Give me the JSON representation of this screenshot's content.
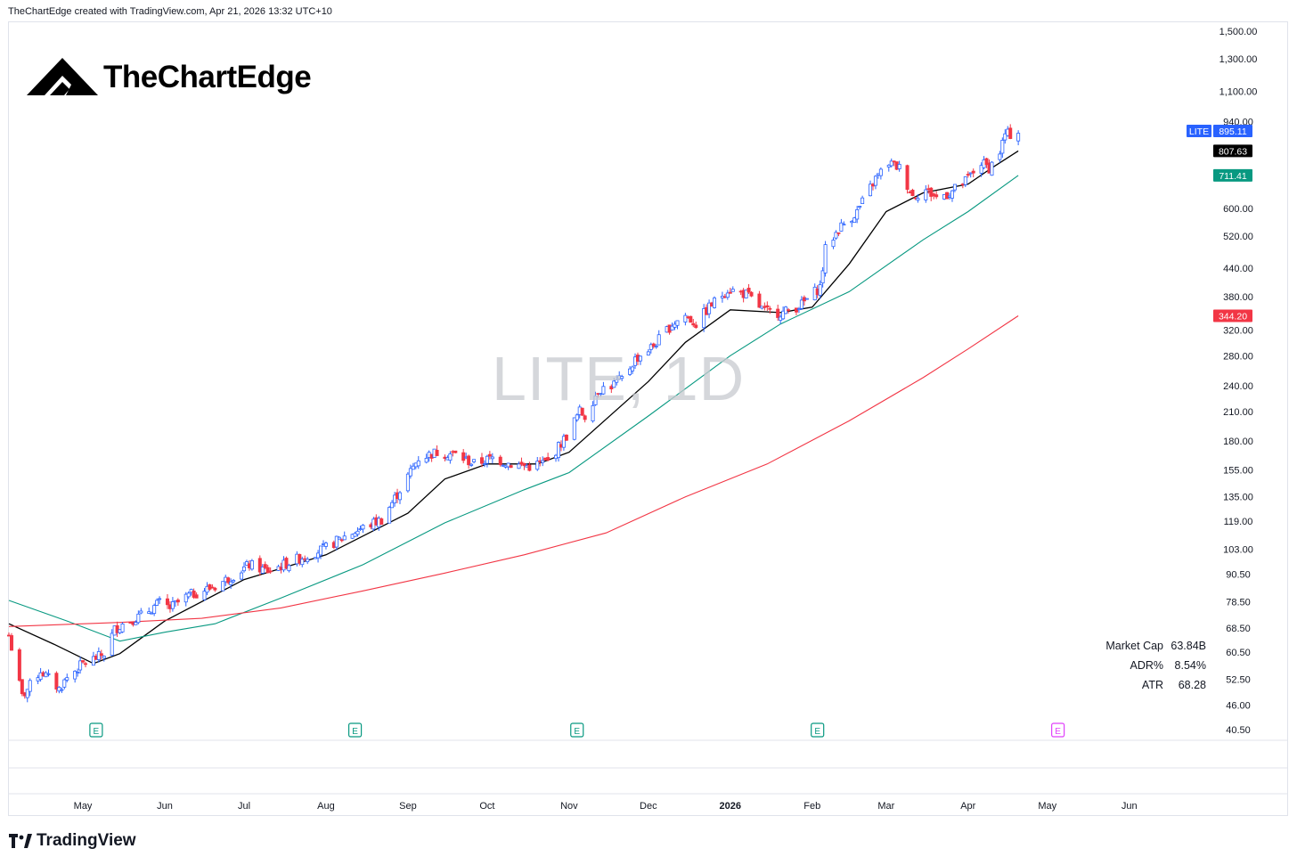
{
  "header": {
    "attribution": "TheChartEdge created with TradingView.com, Apr 21, 2026 13:32 UTC+10"
  },
  "logo": {
    "text": "TheChartEdge"
  },
  "footer": {
    "brand": "TradingView"
  },
  "colors": {
    "bull": "#2962ff",
    "bear": "#f23645",
    "ma_fast": "#000000",
    "ma_mid": "#089981",
    "ma_slow": "#f23645",
    "earnings_past": "#089981",
    "earnings_future": "#e040fb",
    "price_tag": "#2962ff"
  },
  "stats": [
    {
      "label": "Market Cap",
      "value": "63.84B"
    },
    {
      "label": "ADR%",
      "value": "8.54%"
    },
    {
      "label": "ATR",
      "value": "68.28"
    }
  ],
  "chart_data": {
    "type": "candlestick",
    "symbol": "LITE",
    "watermark": "LITE, 1D",
    "y_scale": "log",
    "ylim": [
      40.5,
      1500
    ],
    "y_ticks": [
      {
        "label": "1,500.00",
        "value": 1500
      },
      {
        "label": "1,300.00",
        "value": 1300
      },
      {
        "label": "1,100.00",
        "value": 1100
      },
      {
        "label": "940.00",
        "value": 940
      },
      {
        "label": "600.00",
        "value": 600
      },
      {
        "label": "520.00",
        "value": 520
      },
      {
        "label": "440.00",
        "value": 440
      },
      {
        "label": "380.00",
        "value": 380
      },
      {
        "label": "320.00",
        "value": 320
      },
      {
        "label": "280.00",
        "value": 280
      },
      {
        "label": "240.00",
        "value": 240
      },
      {
        "label": "210.00",
        "value": 210
      },
      {
        "label": "180.00",
        "value": 180
      },
      {
        "label": "155.00",
        "value": 155
      },
      {
        "label": "135.00",
        "value": 135
      },
      {
        "label": "119.00",
        "value": 119
      },
      {
        "label": "103.00",
        "value": 103
      },
      {
        "label": "90.50",
        "value": 90.5
      },
      {
        "label": "78.50",
        "value": 78.5
      },
      {
        "label": "68.50",
        "value": 68.5
      },
      {
        "label": "60.50",
        "value": 60.5
      },
      {
        "label": "52.50",
        "value": 52.5
      },
      {
        "label": "46.00",
        "value": 46
      },
      {
        "label": "40.50",
        "value": 40.5
      }
    ],
    "x_ticks": [
      {
        "label": "May",
        "date": "2025-05-01"
      },
      {
        "label": "Jun",
        "date": "2025-06-01"
      },
      {
        "label": "Jul",
        "date": "2025-07-01"
      },
      {
        "label": "Aug",
        "date": "2025-08-01"
      },
      {
        "label": "Sep",
        "date": "2025-09-01"
      },
      {
        "label": "Oct",
        "date": "2025-10-01"
      },
      {
        "label": "Nov",
        "date": "2025-11-01"
      },
      {
        "label": "Dec",
        "date": "2025-12-01"
      },
      {
        "label": "2026",
        "date": "2026-01-01",
        "bold": true
      },
      {
        "label": "Feb",
        "date": "2026-02-01"
      },
      {
        "label": "Mar",
        "date": "2026-03-01"
      },
      {
        "label": "Apr",
        "date": "2026-04-01"
      },
      {
        "label": "May",
        "date": "2026-05-01"
      },
      {
        "label": "Jun",
        "date": "2026-06-01"
      }
    ],
    "x_range": [
      "2025-04-03",
      "2026-06-22"
    ],
    "price_labels": [
      {
        "label": "LITE",
        "value_label": "895.11",
        "value": 895.11,
        "color": "#2962ff"
      },
      {
        "label": "",
        "value_label": "807.63",
        "value": 807.63,
        "color": "#000000"
      },
      {
        "label": "",
        "value_label": "711.41",
        "value": 711.41,
        "color": "#089981"
      },
      {
        "label": "",
        "value_label": "344.20",
        "value": 344.2,
        "color": "#f23645"
      }
    ],
    "earnings": [
      {
        "date": "2025-05-06",
        "label": "E",
        "future": false
      },
      {
        "date": "2025-08-12",
        "label": "E",
        "future": false
      },
      {
        "date": "2025-11-04",
        "label": "E",
        "future": false
      },
      {
        "date": "2026-02-03",
        "label": "E",
        "future": false
      },
      {
        "date": "2026-05-05",
        "label": "E",
        "future": true
      }
    ],
    "price_path": [
      [
        "2025-04-03",
        66
      ],
      [
        "2025-04-08",
        48
      ],
      [
        "2025-04-15",
        55
      ],
      [
        "2025-04-22",
        50
      ],
      [
        "2025-04-25",
        53
      ],
      [
        "2025-05-01",
        57
      ],
      [
        "2025-05-07",
        59
      ],
      [
        "2025-05-09",
        60
      ],
      [
        "2025-05-13",
        68
      ],
      [
        "2025-05-16",
        70
      ],
      [
        "2025-05-23",
        73
      ],
      [
        "2025-05-30",
        78
      ],
      [
        "2025-06-03",
        76
      ],
      [
        "2025-06-10",
        81
      ],
      [
        "2025-06-20",
        85
      ],
      [
        "2025-06-27",
        90
      ],
      [
        "2025-07-03",
        95
      ],
      [
        "2025-07-10",
        92
      ],
      [
        "2025-07-18",
        96
      ],
      [
        "2025-07-25",
        100
      ],
      [
        "2025-07-31",
        103
      ],
      [
        "2025-08-08",
        110
      ],
      [
        "2025-08-15",
        115
      ],
      [
        "2025-08-22",
        120
      ],
      [
        "2025-08-29",
        140
      ],
      [
        "2025-09-05",
        165
      ],
      [
        "2025-09-12",
        170
      ],
      [
        "2025-09-19",
        168
      ],
      [
        "2025-09-26",
        160
      ],
      [
        "2025-10-03",
        165
      ],
      [
        "2025-10-10",
        160
      ],
      [
        "2025-10-17",
        158
      ],
      [
        "2025-10-24",
        162
      ],
      [
        "2025-10-31",
        185
      ],
      [
        "2025-11-05",
        210
      ],
      [
        "2025-11-07",
        205
      ],
      [
        "2025-11-12",
        235
      ],
      [
        "2025-11-17",
        240
      ],
      [
        "2025-11-21",
        248
      ],
      [
        "2025-11-26",
        275
      ],
      [
        "2025-12-03",
        295
      ],
      [
        "2025-12-10",
        330
      ],
      [
        "2025-12-15",
        345
      ],
      [
        "2025-12-19",
        330
      ],
      [
        "2025-12-24",
        360
      ],
      [
        "2025-12-31",
        395
      ],
      [
        "2026-01-07",
        385
      ],
      [
        "2026-01-14",
        352
      ],
      [
        "2026-01-21",
        350
      ],
      [
        "2026-01-28",
        365
      ],
      [
        "2026-02-04",
        400
      ],
      [
        "2026-02-06",
        485
      ],
      [
        "2026-02-11",
        540
      ],
      [
        "2026-02-18",
        590
      ],
      [
        "2026-02-25",
        700
      ],
      [
        "2026-03-02",
        760
      ],
      [
        "2026-03-06",
        740
      ],
      [
        "2026-03-11",
        640
      ],
      [
        "2026-03-16",
        660
      ],
      [
        "2026-03-20",
        635
      ],
      [
        "2026-03-25",
        650
      ],
      [
        "2026-03-31",
        690
      ],
      [
        "2026-04-06",
        760
      ],
      [
        "2026-04-09",
        740
      ],
      [
        "2026-04-13",
        805
      ],
      [
        "2026-04-15",
        880
      ],
      [
        "2026-04-17",
        880
      ],
      [
        "2026-04-20",
        895.11
      ]
    ],
    "series": [
      {
        "name": "",
        "color": "#000000",
        "points": [
          [
            "2025-04-03",
            70
          ],
          [
            "2025-04-20",
            63
          ],
          [
            "2025-05-05",
            57
          ],
          [
            "2025-05-15",
            60
          ],
          [
            "2025-06-01",
            71
          ],
          [
            "2025-07-01",
            88
          ],
          [
            "2025-08-01",
            100
          ],
          [
            "2025-09-01",
            124
          ],
          [
            "2025-09-15",
            148
          ],
          [
            "2025-10-01",
            160
          ],
          [
            "2025-10-20",
            160
          ],
          [
            "2025-11-01",
            170
          ],
          [
            "2025-12-01",
            245
          ],
          [
            "2025-12-15",
            300
          ],
          [
            "2026-01-01",
            355
          ],
          [
            "2026-01-20",
            350
          ],
          [
            "2026-02-01",
            360
          ],
          [
            "2026-02-15",
            450
          ],
          [
            "2026-03-01",
            590
          ],
          [
            "2026-03-15",
            650
          ],
          [
            "2026-04-01",
            680
          ],
          [
            "2026-04-10",
            740
          ],
          [
            "2026-04-20",
            807.63
          ]
        ]
      },
      {
        "name": "",
        "color": "#089981",
        "points": [
          [
            "2025-04-03",
            79
          ],
          [
            "2025-04-25",
            71
          ],
          [
            "2025-05-15",
            64
          ],
          [
            "2025-06-01",
            67
          ],
          [
            "2025-06-20",
            70
          ],
          [
            "2025-07-15",
            80
          ],
          [
            "2025-08-15",
            95
          ],
          [
            "2025-09-15",
            118
          ],
          [
            "2025-10-15",
            140
          ],
          [
            "2025-11-01",
            153
          ],
          [
            "2025-12-01",
            205
          ],
          [
            "2026-01-01",
            280
          ],
          [
            "2026-01-20",
            330
          ],
          [
            "2026-02-15",
            390
          ],
          [
            "2026-03-15",
            510
          ],
          [
            "2026-04-01",
            590
          ],
          [
            "2026-04-20",
            711.41
          ]
        ]
      },
      {
        "name": "",
        "color": "#f23645",
        "points": [
          [
            "2025-04-03",
            69
          ],
          [
            "2025-05-15",
            70.5
          ],
          [
            "2025-06-15",
            72
          ],
          [
            "2025-07-15",
            76
          ],
          [
            "2025-08-15",
            83
          ],
          [
            "2025-09-15",
            91
          ],
          [
            "2025-10-15",
            100
          ],
          [
            "2025-11-15",
            112
          ],
          [
            "2025-12-15",
            135
          ],
          [
            "2026-01-15",
            160
          ],
          [
            "2026-02-15",
            200
          ],
          [
            "2026-03-15",
            250
          ],
          [
            "2026-04-01",
            290
          ],
          [
            "2026-04-20",
            344.2
          ]
        ]
      }
    ]
  }
}
